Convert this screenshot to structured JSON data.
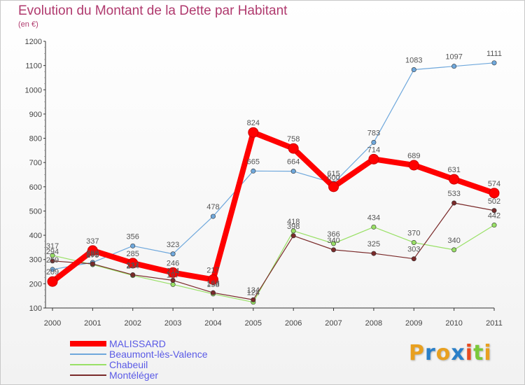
{
  "header": {
    "title": "Evolution du Montant de la Dette par Habitant",
    "subtitle": "(en €)"
  },
  "logo": {
    "letters": [
      "P",
      "r",
      "o",
      "x",
      "i",
      "t",
      "i"
    ],
    "colors": [
      "#e8a020",
      "#2a7fc8",
      "#e8a020",
      "#2a7fc8",
      "#e84a20",
      "#7ac83a",
      "#e8a020"
    ]
  },
  "chart_data": {
    "type": "line",
    "title": "Evolution du Montant de la Dette par Habitant",
    "xlabel": "",
    "ylabel": "(en €)",
    "x": [
      "2000",
      "2001",
      "2002",
      "2003",
      "2004",
      "2005",
      "2006",
      "2007",
      "2008",
      "2009",
      "2010",
      "2011"
    ],
    "ylim": [
      100,
      1200
    ],
    "yticks": [
      "100",
      "200",
      "300",
      "400",
      "500",
      "600",
      "700",
      "800",
      "900",
      "1000",
      "1100",
      "1200"
    ],
    "grid": false,
    "legend_position": "bottom-left",
    "series": [
      {
        "name": "MALISSARD",
        "color": "#ff0000",
        "values": [
          209,
          337,
          285,
          246,
          217,
          824,
          758,
          600,
          714,
          689,
          631,
          574
        ]
      },
      {
        "name": "Beaumont-lès-Valence",
        "color": "#6fa8dc",
        "values": [
          259,
          288,
          356,
          323,
          478,
          665,
          664,
          615,
          783,
          1083,
          1097,
          1111
        ]
      },
      {
        "name": "Chabeuil",
        "color": "#99e066",
        "values": [
          317,
          279,
          234,
          197,
          158,
          124,
          418,
          366,
          434,
          370,
          340,
          442
        ]
      },
      {
        "name": "Montéléger",
        "color": "#7a2a2a",
        "values": [
          294,
          282,
          237,
          214,
          163,
          134,
          398,
          340,
          325,
          303,
          533,
          502
        ]
      }
    ]
  }
}
